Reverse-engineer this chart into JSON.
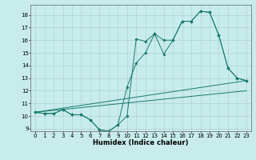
{
  "xlabel": "Humidex (Indice chaleur)",
  "bg_color": "#c8ecec",
  "grid_color": "#b0d0d0",
  "line_color": "#1a7a6e",
  "line1": {
    "x": [
      0,
      1,
      2,
      3,
      4,
      5,
      6,
      7,
      8,
      9,
      10,
      11,
      12,
      13,
      14,
      15,
      16,
      17,
      18,
      19,
      20,
      21,
      22,
      23
    ],
    "y": [
      10.3,
      10.2,
      10.2,
      10.5,
      10.1,
      10.1,
      9.7,
      8.9,
      8.8,
      9.3,
      10.0,
      16.1,
      15.9,
      16.5,
      16.0,
      16.0,
      17.5,
      17.5,
      18.3,
      18.2,
      16.4,
      13.8,
      13.0,
      12.8
    ]
  },
  "line2": {
    "x": [
      0,
      1,
      2,
      3,
      4,
      5,
      6,
      7,
      8,
      9,
      10,
      11,
      12,
      13,
      14,
      15,
      16,
      17,
      18,
      19,
      20,
      21,
      22,
      23
    ],
    "y": [
      10.3,
      10.2,
      10.2,
      10.5,
      10.1,
      10.1,
      9.7,
      8.9,
      8.8,
      9.3,
      12.3,
      14.2,
      15.0,
      16.5,
      14.9,
      16.0,
      17.5,
      17.5,
      18.3,
      18.2,
      16.4,
      13.8,
      13.0,
      12.8
    ]
  },
  "line3": {
    "x": [
      0,
      23
    ],
    "y": [
      10.3,
      12.8
    ]
  },
  "line4": {
    "x": [
      0,
      23
    ],
    "y": [
      10.3,
      12.0
    ]
  },
  "ylim": [
    8.8,
    18.8
  ],
  "xlim": [
    -0.5,
    23.5
  ],
  "yticks": [
    9,
    10,
    11,
    12,
    13,
    14,
    15,
    16,
    17,
    18
  ],
  "xticks": [
    0,
    1,
    2,
    3,
    4,
    5,
    6,
    7,
    8,
    9,
    10,
    11,
    12,
    13,
    14,
    15,
    16,
    17,
    18,
    19,
    20,
    21,
    22,
    23
  ],
  "xlabel_fontsize": 6,
  "tick_labelsize": 5
}
